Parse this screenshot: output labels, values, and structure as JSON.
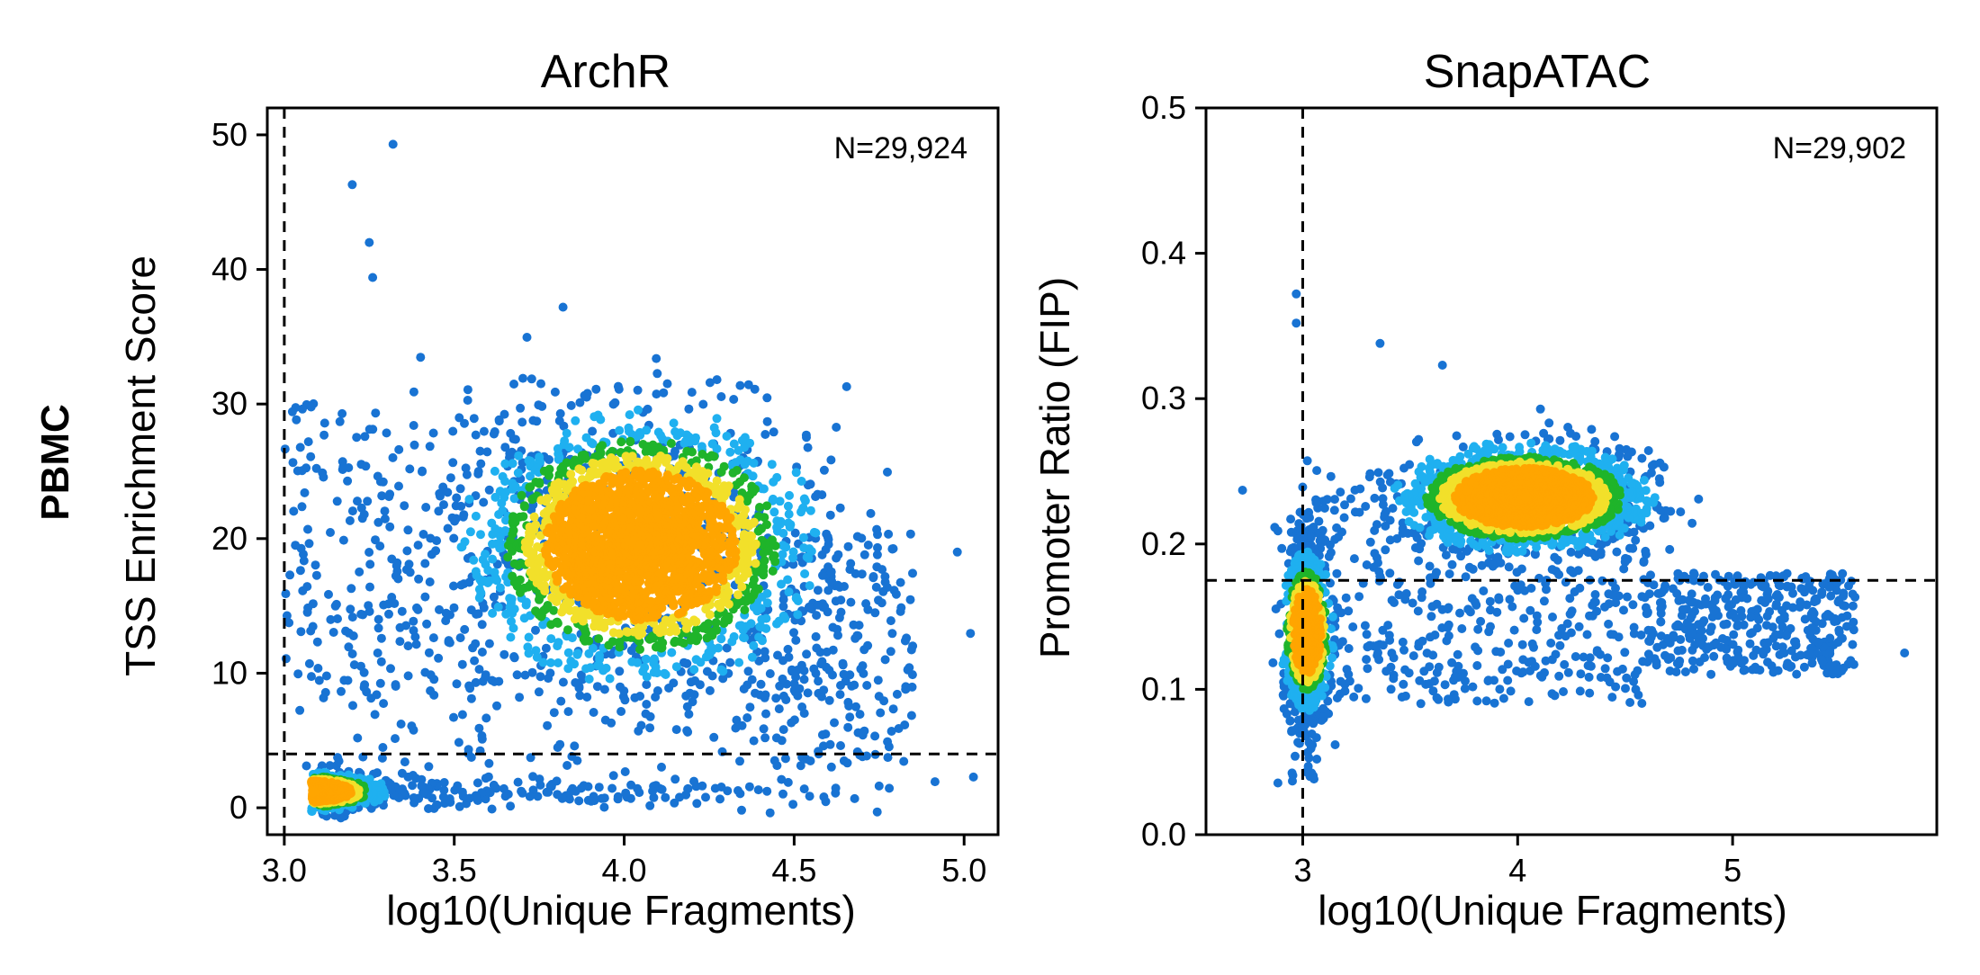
{
  "figure": {
    "row_label": "PBMC"
  },
  "chart_data": [
    {
      "type": "scatter",
      "density_colored": true,
      "title": "ArchR",
      "xlabel": "log10(Unique Fragments)",
      "ylabel": "TSS Enrichment Score",
      "annotation": "N=29,924",
      "xlim": [
        2.95,
        5.1
      ],
      "ylim": [
        -2,
        52
      ],
      "xticks": [
        3.0,
        3.5,
        4.0,
        4.5,
        5.0
      ],
      "xtick_labels": [
        "3.0",
        "3.5",
        "4.0",
        "4.5",
        "5.0"
      ],
      "yticks": [
        0,
        10,
        20,
        30,
        40,
        50
      ],
      "ytick_labels": [
        "0",
        "10",
        "20",
        "30",
        "40",
        "50"
      ],
      "thresholds": {
        "x": 3.0,
        "y": 4
      },
      "grid": false,
      "clusters": [
        {
          "name": "high",
          "x_center": 4.05,
          "y_center": 19.5,
          "x_spread": 0.28,
          "y_spread": 5.5,
          "weight": 0.62
        },
        {
          "name": "low",
          "x_center": 3.08,
          "y_center": 1.2,
          "x_spread": 0.09,
          "y_spread": 0.6,
          "weight": 0.22
        }
      ],
      "outliers": [
        {
          "x": 3.2,
          "y": 46.3
        },
        {
          "x": 3.32,
          "y": 49.3
        },
        {
          "x": 3.25,
          "y": 42.0
        },
        {
          "x": 3.26,
          "y": 39.4
        },
        {
          "x": 3.82,
          "y": 37.2
        },
        {
          "x": 4.98,
          "y": 19.0
        }
      ],
      "colors": {
        "sparse": "#1873d3",
        "mid": "#1fb0f0",
        "dense_green": "#1fb42a",
        "dense_yellow": "#f2e02a",
        "peak": "#ffa500"
      }
    },
    {
      "type": "scatter",
      "density_colored": true,
      "title": "SnapATAC",
      "xlabel": "log10(Unique Fragments)",
      "ylabel": "Promoter Ratio (FIP)",
      "annotation": "N=29,902",
      "xlim": [
        2.55,
        5.95
      ],
      "ylim": [
        0.0,
        0.5
      ],
      "xticks": [
        3,
        4,
        5
      ],
      "xtick_labels": [
        "3",
        "4",
        "5"
      ],
      "yticks": [
        0.0,
        0.1,
        0.2,
        0.3,
        0.4,
        0.5
      ],
      "ytick_labels": [
        "0.0",
        "0.1",
        "0.2",
        "0.3",
        "0.4",
        "0.5"
      ],
      "thresholds": {
        "x": 3.0,
        "y": 0.175
      },
      "grid": false,
      "clusters": [
        {
          "name": "high",
          "x_center": 4.03,
          "y_center": 0.232,
          "x_spread": 0.32,
          "y_spread": 0.02,
          "weight": 0.55
        },
        {
          "name": "low",
          "x_center": 3.02,
          "y_center": 0.14,
          "x_spread": 0.05,
          "y_spread": 0.022,
          "weight": 0.12
        }
      ],
      "outliers": [
        {
          "x": 2.97,
          "y": 0.372
        },
        {
          "x": 2.97,
          "y": 0.352
        },
        {
          "x": 3.36,
          "y": 0.338
        },
        {
          "x": 3.65,
          "y": 0.323
        },
        {
          "x": 2.72,
          "y": 0.237
        },
        {
          "x": 5.8,
          "y": 0.125
        }
      ],
      "colors": {
        "sparse": "#1873d3",
        "mid": "#1fb0f0",
        "dense_green": "#1fb42a",
        "dense_yellow": "#f2e02a",
        "peak": "#ffa500"
      }
    }
  ]
}
